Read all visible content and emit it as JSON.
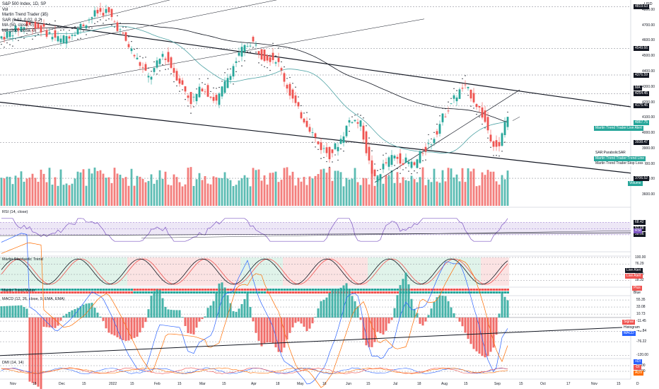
{
  "chart_data": {
    "type": "candlestick",
    "symbol_title": "S&P 500 Index, 1D, SP",
    "legend_lines": [
      "Vol",
      "Martin Trend Trader (35)",
      "SAR (0.02, 0.02, 0.2)",
      "MA (50, close, 0)",
      "MA (200, close, 0)"
    ],
    "currency": "USD",
    "price_axis_ticks": [
      "4800.00",
      "4700.00",
      "4600.00",
      "4500.00",
      "4400.00",
      "4300.00",
      "4200.00",
      "4100.00",
      "4000.00",
      "3900.00",
      "3800.00",
      "3700.00",
      "3600.00"
    ],
    "price_range": [
      3560,
      4840
    ],
    "highlighted_prices": [
      {
        "value": "4819.63",
        "style": "dark"
      },
      {
        "value": "4549.66",
        "style": "dark"
      },
      {
        "value": "4376.59",
        "style": "dark"
      },
      {
        "value": "MA",
        "style": "dark"
      },
      {
        "value": "4254.45",
        "style": "dark"
      },
      {
        "value": "4175.46",
        "style": "dark"
      },
      {
        "value": "4067.75",
        "style": "teal"
      },
      {
        "value": "MA",
        "style": "teal"
      },
      {
        "value": "3938.47",
        "style": "dark"
      },
      {
        "value": "3706.52",
        "style": "dark"
      }
    ],
    "dashed_levels": [
      4819.63,
      4549.66,
      4376.59,
      4254.45,
      4175.46,
      3938.47,
      3706.52
    ],
    "side_labels": [
      "Martin Trend Trader:Live Alert",
      "SAR:ParabolicSAR",
      "Martin Trend Trader:Trend Line",
      "Martin Trend Trader:Stop Loss",
      "Volume"
    ],
    "x_axis_labels": [
      "Nov",
      "15",
      "Dec",
      "15",
      "2022",
      "15",
      "Feb",
      "15",
      "Mar",
      "15",
      "Apr",
      "18",
      "May",
      "16",
      "Jun",
      "15",
      "Jul",
      "18",
      "Aug",
      "15",
      "Sep",
      "15",
      "Oct",
      "17",
      "Nov",
      "15",
      "D"
    ],
    "candles_approx": [
      {
        "t": "Nov start",
        "o": 4610,
        "h": 4660,
        "l": 4600,
        "c": 4650
      },
      {
        "t": "Jan 3",
        "o": 4780,
        "h": 4818,
        "l": 4760,
        "c": 4790
      },
      {
        "t": "Mar 8",
        "o": 4200,
        "h": 4230,
        "l": 4140,
        "c": 4170
      },
      {
        "t": "Mar 29",
        "o": 4600,
        "h": 4637,
        "l": 4590,
        "c": 4630
      },
      {
        "t": "May 20",
        "o": 3900,
        "h": 3940,
        "l": 3810,
        "c": 3900
      },
      {
        "t": "Jun 16",
        "o": 3700,
        "h": 3730,
        "l": 3636,
        "c": 3666
      },
      {
        "t": "Aug 16",
        "o": 4300,
        "h": 4325,
        "l": 4280,
        "c": 4305
      },
      {
        "t": "Sep 6",
        "o": 3910,
        "h": 3930,
        "l": 3885,
        "c": 3908
      },
      {
        "t": "Sep 12",
        "o": 4080,
        "h": 4119,
        "l": 4080,
        "c": 4110
      }
    ],
    "indicators": {
      "rsi": {
        "title": "RSI (14, close)",
        "levels": [
          "68.42",
          "52.68",
          "38.06"
        ],
        "last": "RSI"
      },
      "stochastic": {
        "title": "Martin Stochastic Trend",
        "levels": [
          "100.00",
          "76.29",
          "40.00",
          "18.32"
        ],
        "alerts": [
          "Live Alert",
          "Live Alert"
        ]
      },
      "trend_meter": {
        "title": "Martin Trend Meter",
        "labels": [
          "Plus",
          "Blue"
        ]
      },
      "macd": {
        "title": "MACD (12, 26, close, 9, EMA, EMA)",
        "levels": [
          "55.35",
          "33.08",
          "10.73",
          "-11.45",
          "-43.84",
          "-76.22",
          "-120.00"
        ],
        "labels": [
          "Signal",
          "Histogram",
          "MACD"
        ]
      },
      "dmi": {
        "title": "DMI (14, 14)",
        "levels": [
          "40.00",
          "20.00"
        ],
        "labels": [
          "+DI",
          "-DI",
          "ADX"
        ]
      }
    },
    "colors": {
      "up": "#26a69a",
      "down": "#ef5350",
      "ma50": "#4fa3a5",
      "ma200": "#131722",
      "sar": "#131722",
      "rsi_band": "#7e57c2",
      "stoch_k": "#131722",
      "stoch_d": "#ef5350",
      "bg_bull": "#e0f3ea",
      "bg_bear": "#fbe3e3"
    }
  }
}
